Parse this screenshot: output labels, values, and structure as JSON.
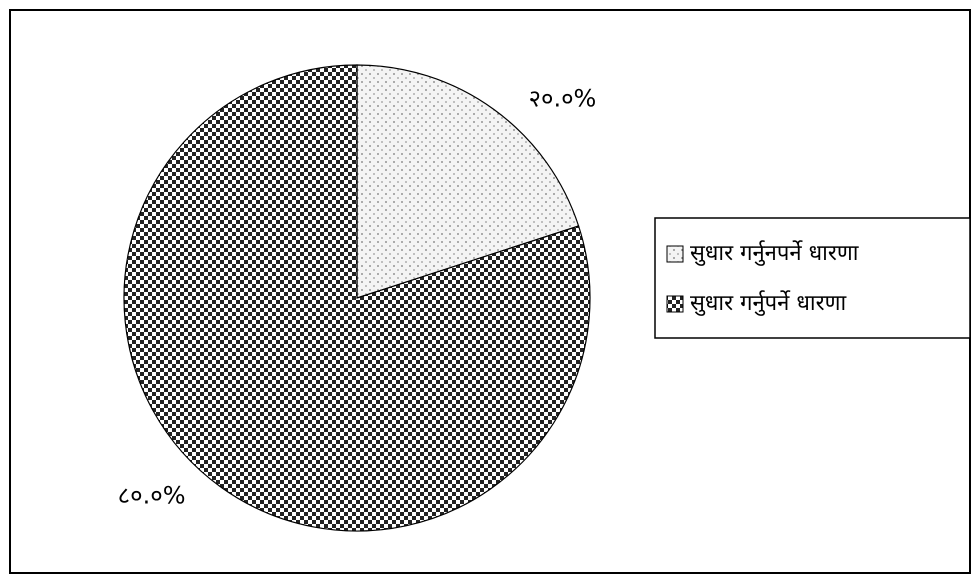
{
  "chart_data": {
    "type": "pie",
    "categories": [
      "सुधार गर्नुनपर्ने धारणा",
      "सुधार गर्नुपर्ने धारणा"
    ],
    "values": [
      20,
      80
    ],
    "value_labels": [
      "२०.०%",
      "८०.०%"
    ]
  }
}
